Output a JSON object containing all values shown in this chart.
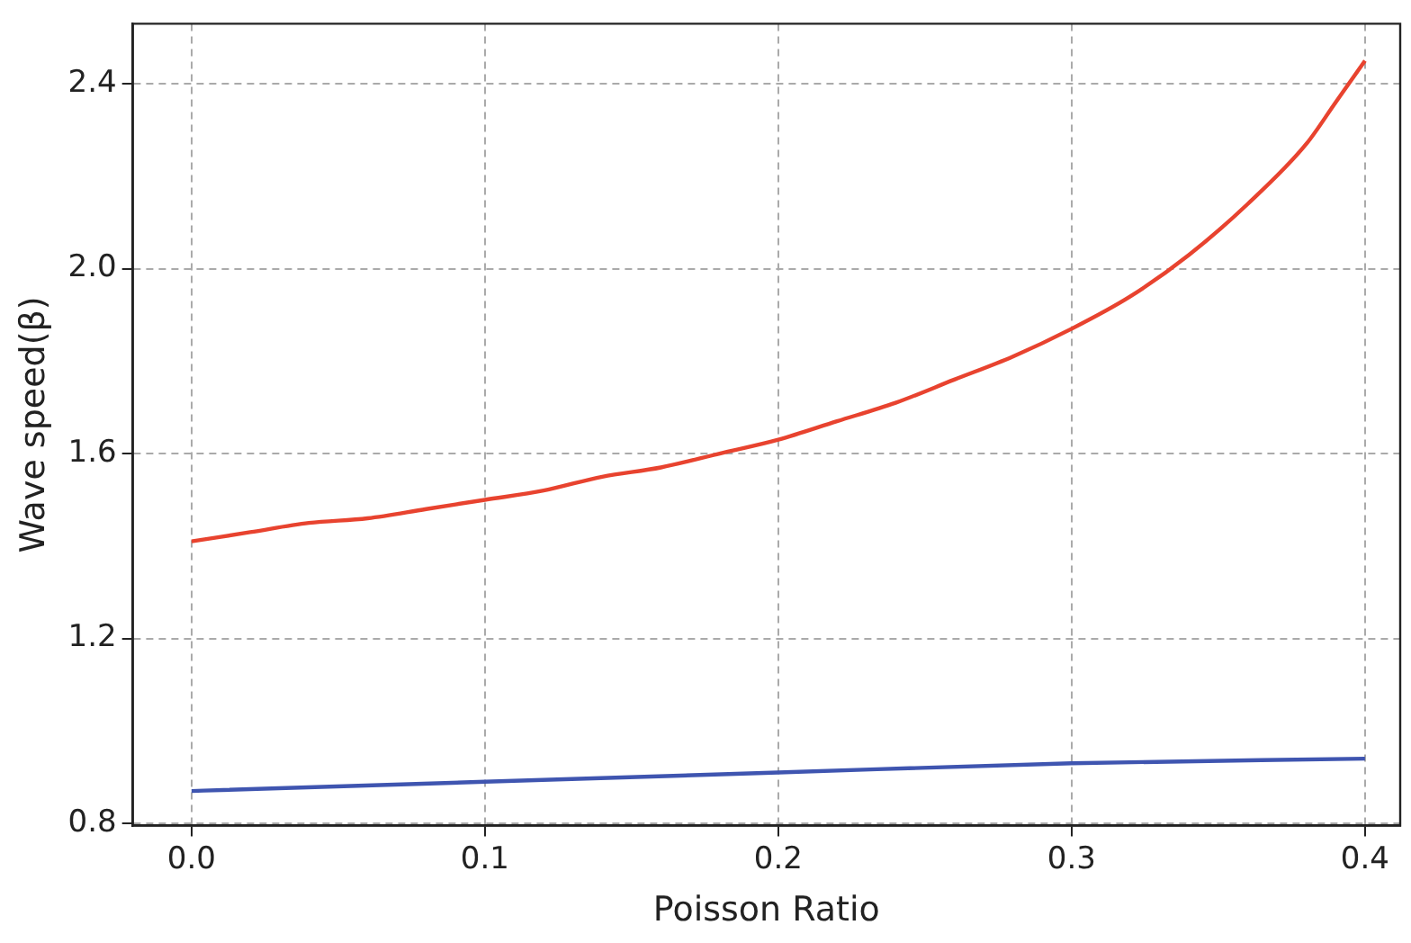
{
  "chart_data": {
    "type": "line",
    "xlabel": "Poisson Ratio",
    "ylabel": "Wave speed(β)",
    "xlim": [
      -0.02,
      0.412
    ],
    "xticks": [
      {
        "value": 0,
        "label": "0.0"
      },
      0.1,
      0.2,
      0.3,
      0.4
    ],
    "ylim": [
      0.795,
      2.53
    ],
    "yticks": [
      {
        "value": 0.8,
        "label": "0.8"
      },
      1.2,
      1.6,
      {
        "value": 2,
        "label": "2.0"
      },
      2.4
    ],
    "grid": true,
    "line_style": "solid",
    "marker": "none",
    "legend": false,
    "series": [
      {
        "color": "#e8432f",
        "x": [
          0,
          0.02,
          0.04,
          0.06,
          0.08,
          0.1,
          0.12,
          0.14,
          0.16,
          0.18,
          0.2,
          0.22,
          0.24,
          0.26,
          0.28,
          0.3,
          0.32,
          0.34,
          0.36,
          0.38,
          0.39,
          0.4
        ],
        "values": [
          1.41,
          1.43,
          1.45,
          1.46,
          1.48,
          1.5,
          1.52,
          1.55,
          1.57,
          1.6,
          1.63,
          1.67,
          1.71,
          1.76,
          1.81,
          1.87,
          1.94,
          2.03,
          2.14,
          2.27,
          2.36,
          2.45
        ]
      },
      {
        "color": "#3f55b0",
        "x": [
          0,
          0.1,
          0.2,
          0.3,
          0.4
        ],
        "values": [
          0.87,
          0.89,
          0.91,
          0.93,
          0.94
        ]
      }
    ]
  }
}
